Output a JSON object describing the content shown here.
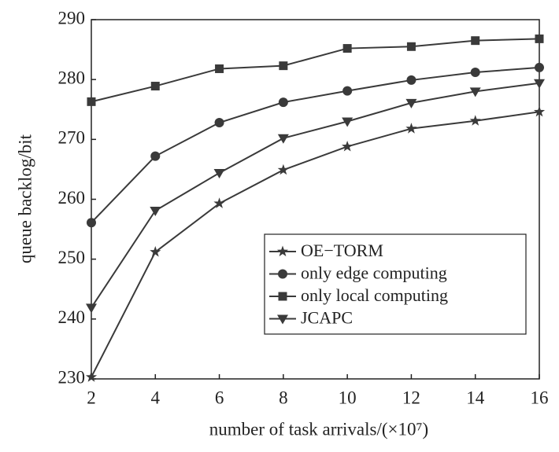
{
  "chart_data": {
    "type": "line",
    "xlabel": "number of task arrivals/(×10⁷)",
    "ylabel": "queue backlog/bit",
    "x": [
      2,
      4,
      6,
      8,
      10,
      12,
      14,
      16
    ],
    "xlim": [
      2,
      16
    ],
    "xticks": [
      2,
      4,
      6,
      8,
      10,
      12,
      14,
      16
    ],
    "ylim": [
      230,
      290
    ],
    "yticks": [
      230,
      240,
      250,
      260,
      270,
      280,
      290
    ],
    "legend_position": "lower right",
    "series": [
      {
        "name": "OE−TORM",
        "color": "#3a3a3a",
        "marker": "star",
        "values": [
          230.3,
          251.2,
          259.3,
          264.9,
          268.8,
          271.8,
          273.1,
          274.6
        ]
      },
      {
        "name": "only edge computing",
        "color": "#3a3a3a",
        "marker": "circle",
        "values": [
          256.1,
          267.2,
          272.8,
          276.2,
          278.1,
          279.9,
          281.2,
          282.0
        ]
      },
      {
        "name": "only local computing",
        "color": "#3a3a3a",
        "marker": "square",
        "values": [
          276.3,
          278.9,
          281.8,
          282.3,
          285.2,
          285.5,
          286.5,
          286.8
        ]
      },
      {
        "name": "JCAPC",
        "color": "#3a3a3a",
        "marker": "triangle-down",
        "values": [
          241.9,
          258.1,
          264.4,
          270.2,
          273.0,
          276.1,
          278.0,
          279.4
        ]
      }
    ]
  }
}
